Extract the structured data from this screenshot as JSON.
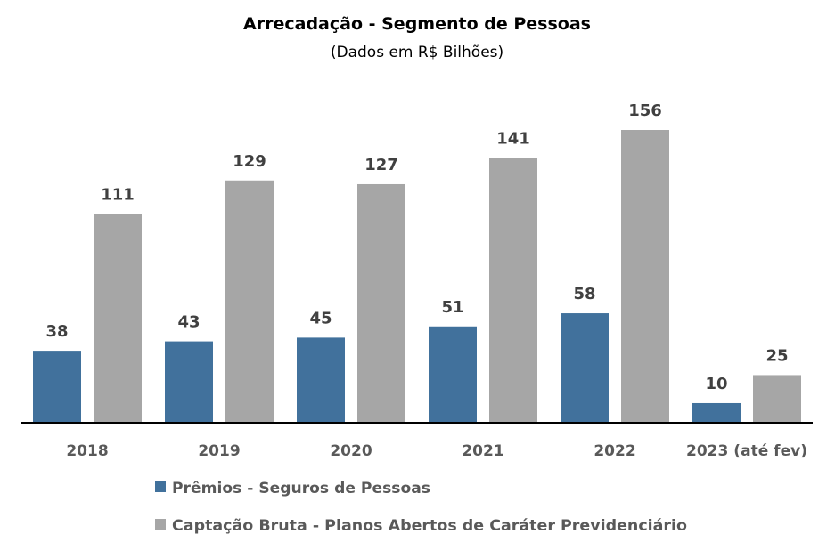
{
  "chart_data": {
    "type": "bar",
    "title": "Arrecadação - Segmento de Pessoas",
    "subtitle": "(Dados em R$ Bilhões)",
    "xlabel": "",
    "ylabel": "",
    "ylim": [
      0,
      156
    ],
    "grid": false,
    "legend_position": "bottom",
    "categories": [
      "2018",
      "2019",
      "2020",
      "2021",
      "2022",
      "2023 (até fev)"
    ],
    "series": [
      {
        "name": "Prêmios - Seguros de Pessoas",
        "color": "#41719c",
        "values": [
          38,
          43,
          45,
          51,
          58,
          10
        ]
      },
      {
        "name": "Captação Bruta - Planos Abertos de Caráter Previdenciário",
        "color": "#a6a6a6",
        "values": [
          111,
          129,
          127,
          141,
          156,
          25
        ]
      }
    ]
  }
}
